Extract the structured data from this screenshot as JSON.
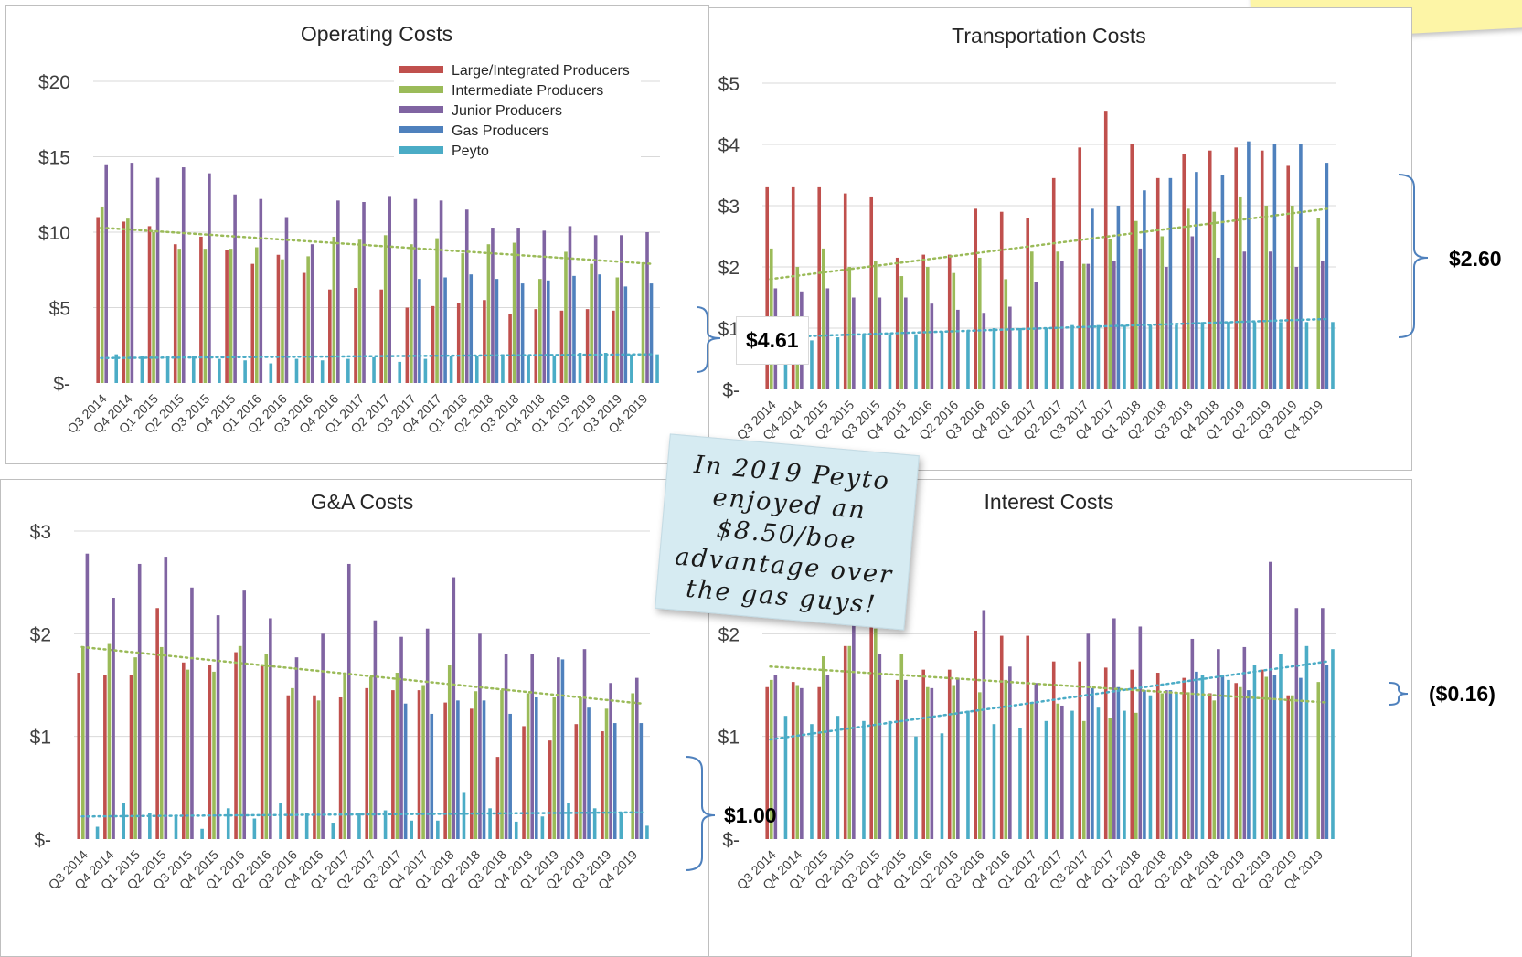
{
  "quarters": [
    "Q3 2014",
    "Q4 2014",
    "Q1 2015",
    "Q2 2015",
    "Q3 2015",
    "Q4 2015",
    "Q1 2016",
    "Q2 2016",
    "Q3 2016",
    "Q4 2016",
    "Q1 2017",
    "Q2 2017",
    "Q3 2017",
    "Q4 2017",
    "Q1 2018",
    "Q2 2018",
    "Q3 2018",
    "Q4 2018",
    "Q1 2019",
    "Q2 2019",
    "Q3 2019",
    "Q4 2019"
  ],
  "colors": {
    "large": "#c0504d",
    "intermediate": "#9bbb59",
    "junior": "#8064a2",
    "gas": "#4f81bd",
    "peyto": "#4bacc6"
  },
  "legend": [
    "Large/Integrated Producers",
    "Intermediate Producers",
    "Junior Producers",
    "Gas Producers",
    "Peyto"
  ],
  "note_text": "In 2019 Peyto enjoyed an $8.50/boe advantage over the gas guys!",
  "callouts": {
    "operating": "$4.61",
    "transportation": "$2.60",
    "ga": "$1.00",
    "interest": "($0.16)"
  },
  "chart_data": [
    {
      "type": "bar",
      "title": "Operating Costs",
      "ylim": [
        0,
        20
      ],
      "yticks": [
        "$-",
        "$5",
        "$10",
        "$15",
        "$20"
      ],
      "legend_position": "top-right",
      "grid": true,
      "series": [
        {
          "name": "Large/Integrated Producers",
          "key": "large",
          "values": [
            11.0,
            10.7,
            10.4,
            9.2,
            9.7,
            8.8,
            7.9,
            8.5,
            7.3,
            6.2,
            6.3,
            6.2,
            5.0,
            5.1,
            5.3,
            5.5,
            4.6,
            4.9,
            4.8,
            4.9,
            4.8,
            null
          ]
        },
        {
          "name": "Intermediate Producers",
          "key": "intermediate",
          "values": [
            11.7,
            10.9,
            10.0,
            8.9,
            8.9,
            8.9,
            9.0,
            8.2,
            8.4,
            9.7,
            9.5,
            9.8,
            9.2,
            9.6,
            8.6,
            9.2,
            9.3,
            6.9,
            8.7,
            7.9,
            7.0,
            8.0
          ]
        },
        {
          "name": "Junior Producers",
          "key": "junior",
          "values": [
            14.5,
            14.6,
            13.6,
            14.3,
            13.9,
            12.5,
            12.2,
            11.0,
            9.2,
            12.1,
            12.0,
            12.4,
            12.2,
            12.1,
            11.5,
            10.3,
            10.3,
            10.1,
            10.4,
            9.8,
            9.8,
            10.0
          ]
        },
        {
          "name": "Gas Producers",
          "key": "gas",
          "values": [
            null,
            null,
            null,
            null,
            null,
            null,
            null,
            null,
            null,
            null,
            null,
            null,
            6.9,
            7.0,
            7.2,
            6.9,
            6.6,
            6.8,
            7.1,
            7.2,
            6.4,
            6.6
          ]
        },
        {
          "name": "Peyto",
          "key": "peyto",
          "values": [
            1.9,
            1.8,
            1.8,
            1.8,
            1.6,
            1.5,
            1.3,
            1.6,
            1.5,
            1.6,
            1.7,
            1.4,
            1.6,
            1.8,
            1.8,
            1.9,
            1.8,
            1.8,
            2.0,
            2.0,
            1.9,
            1.9
          ]
        }
      ],
      "trendlines": [
        {
          "key": "intermediate",
          "start": 10.3,
          "end": 7.9
        },
        {
          "key": "peyto",
          "start": 1.65,
          "end": 1.9
        }
      ]
    },
    {
      "type": "bar",
      "title": "Transportation Costs",
      "ylim": [
        0,
        5
      ],
      "yticks": [
        "$-",
        "$1",
        "$2",
        "$3",
        "$4",
        "$5"
      ],
      "grid": true,
      "series": [
        {
          "name": "Large/Integrated Producers",
          "key": "large",
          "values": [
            3.3,
            3.3,
            3.3,
            3.2,
            3.15,
            2.15,
            2.2,
            2.2,
            2.95,
            2.9,
            2.8,
            3.45,
            3.95,
            4.55,
            4.0,
            3.45,
            3.85,
            3.9,
            3.95,
            3.9,
            3.65,
            null
          ]
        },
        {
          "name": "Intermediate Producers",
          "key": "intermediate",
          "values": [
            2.3,
            2.0,
            2.3,
            2.0,
            2.1,
            1.85,
            2.0,
            1.9,
            2.15,
            1.8,
            2.25,
            2.25,
            2.05,
            2.45,
            2.75,
            2.5,
            2.95,
            2.9,
            3.15,
            3.0,
            3.0,
            2.8
          ]
        },
        {
          "name": "Junior Producers",
          "key": "junior",
          "values": [
            1.65,
            1.6,
            1.65,
            1.5,
            1.5,
            1.5,
            1.4,
            1.3,
            1.25,
            1.35,
            1.75,
            2.1,
            2.05,
            2.1,
            2.3,
            2.0,
            2.5,
            2.15,
            2.25,
            2.25,
            2.0,
            2.1
          ]
        },
        {
          "name": "Gas Producers",
          "key": "gas",
          "values": [
            null,
            null,
            null,
            null,
            null,
            null,
            null,
            null,
            null,
            null,
            null,
            null,
            2.95,
            3.0,
            3.25,
            3.45,
            3.55,
            3.5,
            4.05,
            4.0,
            4.0,
            3.7
          ]
        },
        {
          "name": "Peyto",
          "key": "peyto",
          "values": [
            0.8,
            0.8,
            0.85,
            0.9,
            0.9,
            0.9,
            0.95,
            0.95,
            1.0,
            1.0,
            1.0,
            1.05,
            1.05,
            1.05,
            1.05,
            1.05,
            1.1,
            1.1,
            1.1,
            1.1,
            1.1,
            1.1
          ]
        }
      ],
      "trendlines": [
        {
          "key": "intermediate",
          "start": 1.8,
          "end": 2.95
        },
        {
          "key": "peyto",
          "start": 0.85,
          "end": 1.15
        }
      ]
    },
    {
      "type": "bar",
      "title": "G&A Costs",
      "ylim": [
        0,
        3
      ],
      "yticks": [
        "$-",
        "$1",
        "$2",
        "$3"
      ],
      "grid": true,
      "series": [
        {
          "name": "Large/Integrated Producers",
          "key": "large",
          "values": [
            1.62,
            1.6,
            1.6,
            2.25,
            1.72,
            1.7,
            1.82,
            1.7,
            1.4,
            1.4,
            1.38,
            1.47,
            1.45,
            1.45,
            1.33,
            1.27,
            0.8,
            1.1,
            0.96,
            1.12,
            1.05,
            null
          ]
        },
        {
          "name": "Intermediate Producers",
          "key": "intermediate",
          "values": [
            1.87,
            1.9,
            1.77,
            1.87,
            1.65,
            1.63,
            1.88,
            1.8,
            1.47,
            1.35,
            1.6,
            1.58,
            1.62,
            1.5,
            1.7,
            1.44,
            1.45,
            1.42,
            1.38,
            1.38,
            1.27,
            1.42
          ]
        },
        {
          "name": "Junior Producers",
          "key": "junior",
          "values": [
            2.78,
            2.35,
            2.68,
            2.75,
            2.45,
            2.18,
            2.42,
            2.15,
            1.77,
            2.0,
            2.68,
            2.13,
            1.97,
            2.05,
            2.55,
            2.0,
            1.8,
            1.8,
            1.77,
            1.85,
            1.52,
            1.57
          ]
        },
        {
          "name": "Gas Producers",
          "key": "gas",
          "values": [
            null,
            null,
            null,
            null,
            null,
            null,
            null,
            null,
            null,
            null,
            null,
            null,
            1.32,
            1.22,
            1.35,
            1.35,
            1.22,
            1.38,
            1.75,
            1.28,
            1.13,
            1.13
          ]
        },
        {
          "name": "Peyto",
          "key": "peyto",
          "values": [
            0.12,
            0.35,
            0.25,
            0.22,
            0.1,
            0.3,
            0.2,
            0.35,
            0.25,
            0.16,
            0.25,
            0.28,
            0.18,
            0.18,
            0.45,
            0.3,
            0.17,
            0.22,
            0.35,
            0.3,
            0.25,
            0.13
          ]
        }
      ],
      "trendlines": [
        {
          "key": "intermediate",
          "start": 1.87,
          "end": 1.32
        },
        {
          "key": "peyto",
          "start": 0.22,
          "end": 0.26
        }
      ]
    },
    {
      "type": "bar",
      "title": "Interest Costs",
      "ylim": [
        0,
        3
      ],
      "yticks": [
        "$-",
        "$1",
        "$2"
      ],
      "grid": true,
      "series": [
        {
          "name": "Large/Integrated Producers",
          "key": "large",
          "values": [
            1.48,
            1.53,
            1.48,
            1.88,
            2.35,
            1.55,
            1.65,
            1.65,
            2.03,
            1.98,
            1.98,
            1.73,
            1.73,
            1.67,
            1.65,
            1.62,
            1.57,
            1.42,
            1.52,
            1.65,
            1.4,
            null
          ]
        },
        {
          "name": "Intermediate Producers",
          "key": "intermediate",
          "values": [
            1.55,
            1.5,
            1.78,
            1.88,
            2.05,
            1.8,
            1.48,
            1.5,
            1.43,
            1.55,
            1.33,
            1.32,
            1.15,
            1.18,
            1.23,
            1.42,
            1.43,
            1.35,
            1.48,
            1.58,
            1.4,
            1.53
          ]
        },
        {
          "name": "Junior Producers",
          "key": "junior",
          "values": [
            1.6,
            1.47,
            1.6,
            2.28,
            1.8,
            1.55,
            1.47,
            1.57,
            2.23,
            1.68,
            1.52,
            1.3,
            2.0,
            2.15,
            2.07,
            1.45,
            1.95,
            1.85,
            1.87,
            2.7,
            2.25,
            2.25
          ]
        },
        {
          "name": "Gas Producers",
          "key": "gas",
          "values": [
            null,
            null,
            null,
            null,
            null,
            null,
            null,
            null,
            null,
            null,
            null,
            null,
            1.47,
            1.48,
            1.45,
            1.45,
            1.63,
            1.6,
            1.45,
            1.6,
            1.57,
            1.7
          ]
        },
        {
          "name": "Peyto",
          "key": "peyto",
          "values": [
            1.2,
            1.12,
            1.2,
            1.15,
            1.15,
            1.0,
            1.03,
            1.25,
            1.12,
            1.08,
            1.15,
            1.25,
            1.28,
            1.25,
            1.4,
            1.42,
            1.6,
            1.55,
            1.7,
            1.8,
            1.88,
            1.85
          ]
        }
      ],
      "trendlines": [
        {
          "key": "intermediate",
          "start": 1.68,
          "end": 1.33
        },
        {
          "key": "peyto",
          "start": 0.97,
          "end": 1.73
        }
      ]
    }
  ]
}
